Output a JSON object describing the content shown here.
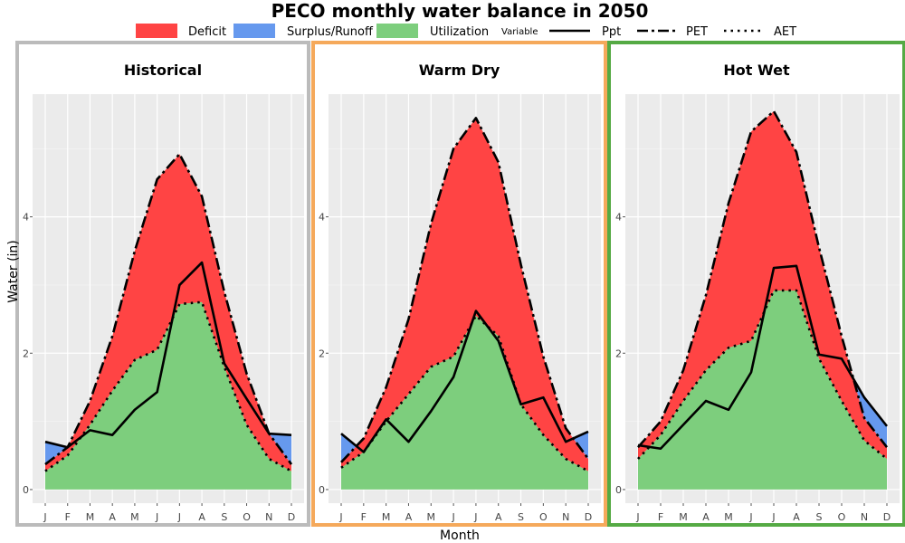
{
  "title": "PECO monthly water balance in 2050",
  "legend": {
    "fill_items": [
      {
        "label": "Deficit",
        "color": "#FF4444"
      },
      {
        "label": "Surplus/Runoff",
        "color": "#6699EE"
      },
      {
        "label": "Utilization",
        "color": "#7DCE7D"
      }
    ],
    "variable_title": "Variable",
    "line_items": [
      {
        "label": "Ppt",
        "style": "solid"
      },
      {
        "label": "PET",
        "style": "dashdot"
      },
      {
        "label": "AET",
        "style": "dotted"
      }
    ]
  },
  "chart_data": {
    "type": "area",
    "xlabel": "Month",
    "ylabel": "Water (in)",
    "ylim": [
      -0.2,
      5.8
    ],
    "yticks": [
      0,
      2,
      4
    ],
    "months": [
      "J",
      "F",
      "M",
      "A",
      "M",
      "J",
      "J",
      "A",
      "S",
      "O",
      "N",
      "D"
    ],
    "grid": true,
    "panels": [
      {
        "name": "Historical",
        "border_color": "#BBBBBB",
        "series": [
          {
            "name": "Ppt",
            "values": [
              0.7,
              0.62,
              0.87,
              0.8,
              1.17,
              1.43,
              3.0,
              3.33,
              1.85,
              1.33,
              0.82,
              0.8
            ]
          },
          {
            "name": "PET",
            "values": [
              0.37,
              0.62,
              1.3,
              2.25,
              3.5,
              4.55,
              4.92,
              4.3,
              2.9,
              1.7,
              0.82,
              0.37
            ]
          },
          {
            "name": "AET",
            "values": [
              0.27,
              0.5,
              0.95,
              1.45,
              1.9,
              2.05,
              2.72,
              2.75,
              1.8,
              0.95,
              0.45,
              0.27
            ]
          }
        ]
      },
      {
        "name": "Warm Dry",
        "border_color": "#F5A95B",
        "series": [
          {
            "name": "Ppt",
            "values": [
              0.82,
              0.55,
              1.03,
              0.7,
              1.15,
              1.65,
              2.62,
              2.18,
              1.25,
              1.35,
              0.7,
              0.85
            ]
          },
          {
            "name": "PET",
            "values": [
              0.4,
              0.75,
              1.5,
              2.5,
              3.9,
              5.0,
              5.45,
              4.8,
              3.3,
              1.95,
              0.9,
              0.45
            ]
          },
          {
            "name": "AET",
            "values": [
              0.32,
              0.55,
              1.0,
              1.4,
              1.8,
              1.95,
              2.55,
              2.25,
              1.25,
              0.8,
              0.45,
              0.27
            ]
          }
        ]
      },
      {
        "name": "Hot Wet",
        "border_color": "#55AA44",
        "series": [
          {
            "name": "Ppt",
            "values": [
              0.65,
              0.6,
              0.95,
              1.3,
              1.17,
              1.72,
              3.25,
              3.28,
              1.98,
              1.92,
              1.35,
              0.93
            ]
          },
          {
            "name": "PET",
            "values": [
              0.62,
              1.0,
              1.75,
              2.85,
              4.2,
              5.25,
              5.55,
              4.95,
              3.55,
              2.25,
              1.05,
              0.62
            ]
          },
          {
            "name": "AET",
            "values": [
              0.45,
              0.8,
              1.3,
              1.75,
              2.08,
              2.18,
              2.92,
              2.92,
              1.92,
              1.3,
              0.72,
              0.45
            ]
          }
        ]
      }
    ]
  }
}
